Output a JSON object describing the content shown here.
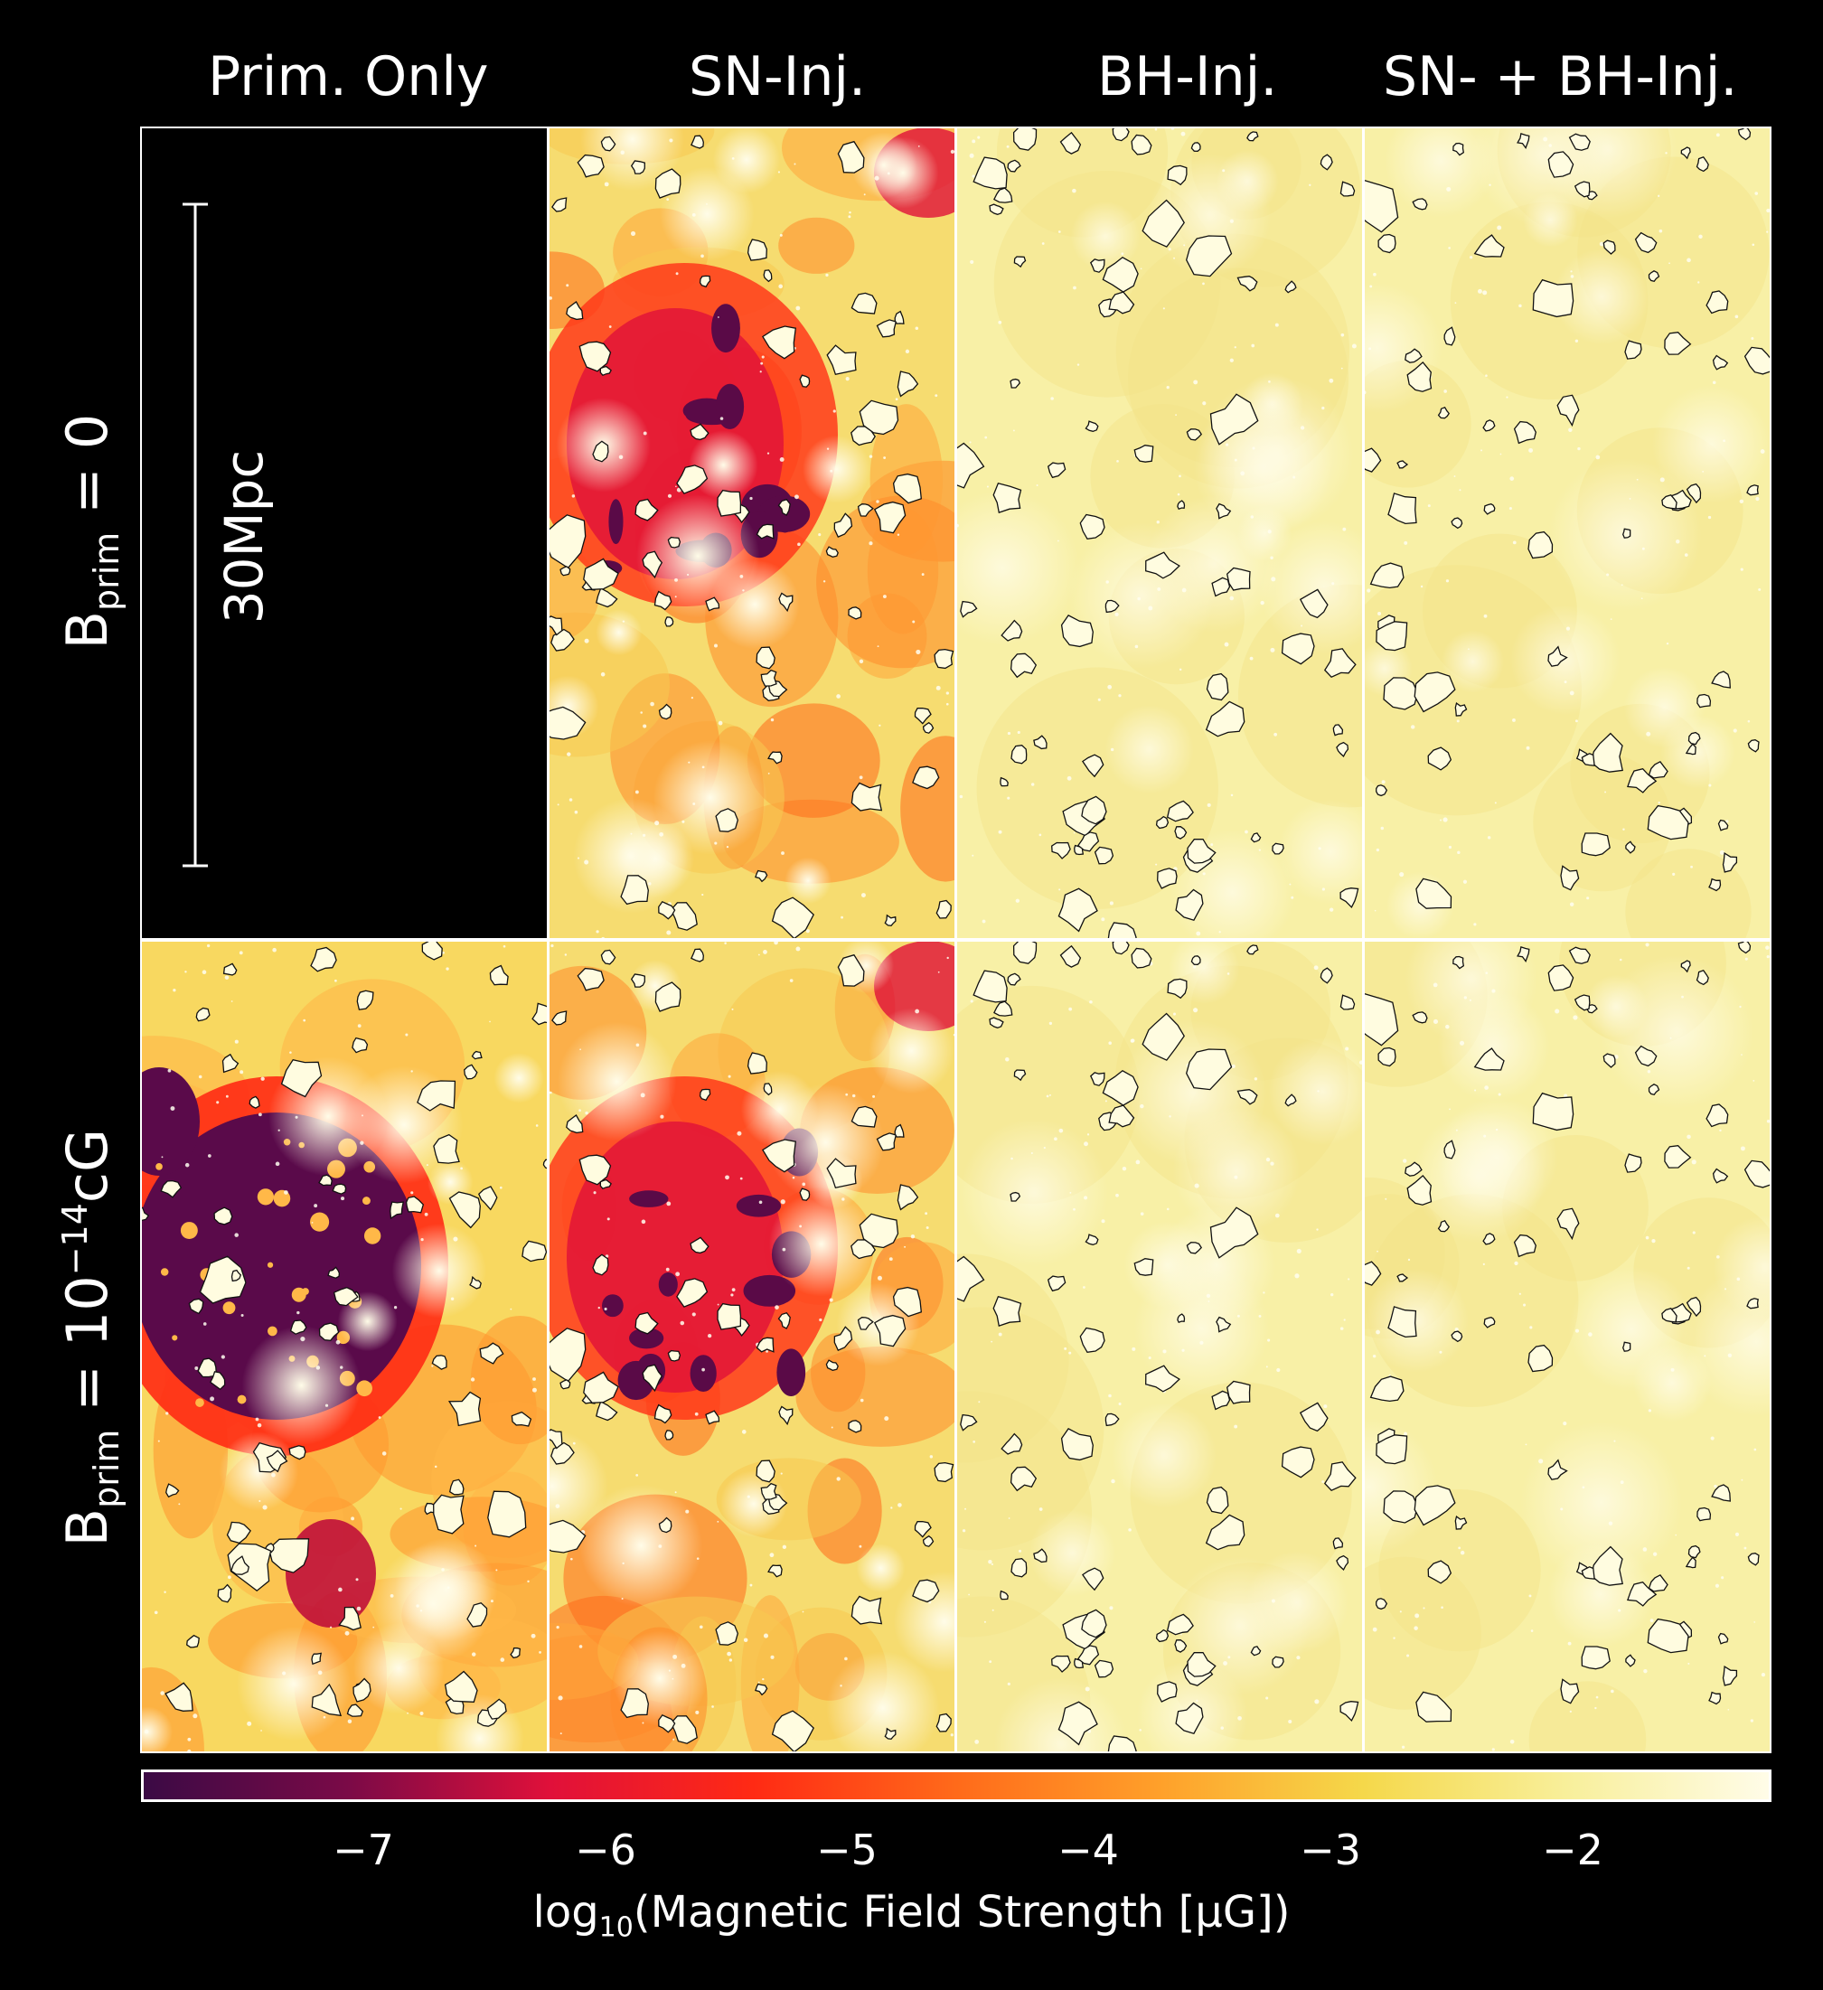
{
  "columns": [
    {
      "title": "Prim. Only"
    },
    {
      "title": "SN-Inj."
    },
    {
      "title": "BH-Inj."
    },
    {
      "title": "SN- + BH-Inj."
    }
  ],
  "rows": [
    {
      "label_main": "B",
      "label_sub": "prim",
      "label_rest": " = 0",
      "label_sup": ""
    },
    {
      "label_main": "B",
      "label_sub": "prim",
      "label_rest": " = 10",
      "label_sup": "−14",
      "label_unit": "cG"
    }
  ],
  "scale_bar": {
    "label": "30Mpc"
  },
  "colorbar": {
    "ticks": [
      "−7",
      "−6",
      "−5",
      "−4",
      "−3",
      "−2"
    ],
    "tick_values": [
      -7,
      -6,
      -5,
      -4,
      -3,
      -2
    ],
    "range": [
      -7.9,
      -1.3
    ],
    "label_prefix": "log",
    "label_sub": "10",
    "label_rest": "(Magnetic Field Strength [μG])",
    "colors": [
      "#3b0a45",
      "#7a0a47",
      "#e0103a",
      "#ff2a14",
      "#ff6a1a",
      "#ffa02a",
      "#f5d84a",
      "#f8ef9a",
      "#fffce8"
    ]
  },
  "panels": [
    {
      "row": 0,
      "col": 0,
      "empty": true
    },
    {
      "row": 0,
      "col": 1,
      "style": "sn"
    },
    {
      "row": 0,
      "col": 2,
      "style": "bh"
    },
    {
      "row": 0,
      "col": 3,
      "style": "bh"
    },
    {
      "row": 1,
      "col": 0,
      "style": "prim"
    },
    {
      "row": 1,
      "col": 1,
      "style": "sn"
    },
    {
      "row": 1,
      "col": 2,
      "style": "bh"
    },
    {
      "row": 1,
      "col": 3,
      "style": "bh"
    }
  ]
}
